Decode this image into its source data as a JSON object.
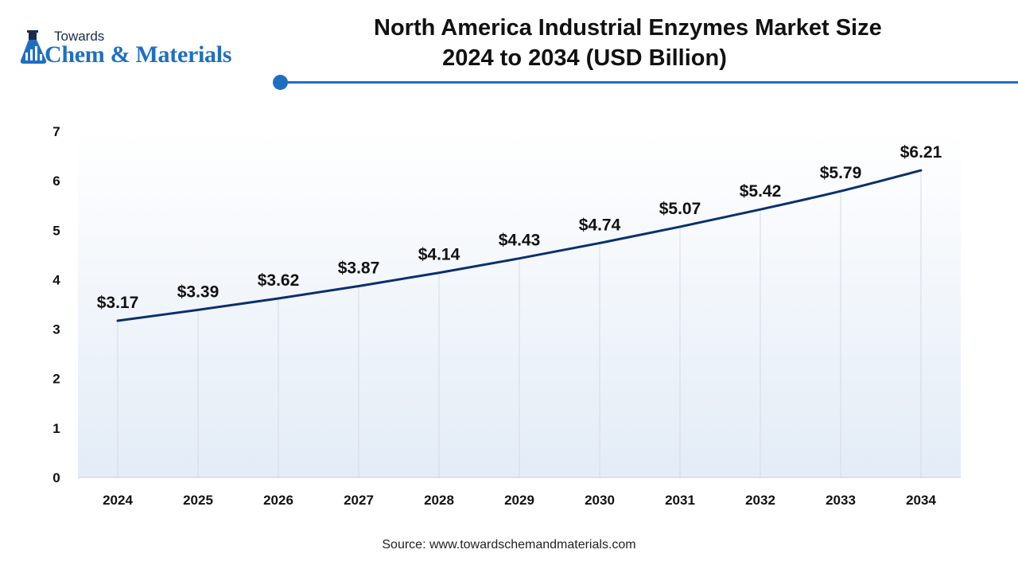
{
  "brand": {
    "line1": "Towards",
    "line2": "Chem & Materials",
    "color": "#1f6fc0"
  },
  "chart_data": {
    "type": "line",
    "title_line1": "North America Industrial Enzymes Market Size",
    "title_line2": "2024 to 2034 (USD Billion)",
    "categories": [
      "2024",
      "2025",
      "2026",
      "2027",
      "2028",
      "2029",
      "2030",
      "2031",
      "2032",
      "2033",
      "2034"
    ],
    "values": [
      3.17,
      3.39,
      3.62,
      3.87,
      4.14,
      4.43,
      4.74,
      5.07,
      5.42,
      5.79,
      6.21
    ],
    "data_labels": [
      "$3.17",
      "$3.39",
      "$3.62",
      "$3.87",
      "$4.14",
      "$4.43",
      "$4.74",
      "$5.07",
      "$5.42",
      "$5.79",
      "$6.21"
    ],
    "y_ticks": [
      "0",
      "1",
      "2",
      "3",
      "4",
      "5",
      "6",
      "7"
    ],
    "ylim": [
      0,
      7
    ],
    "line_color": "#0b2f6b",
    "grid": "vertical"
  },
  "source": "Source: www.towardschemandmaterials.com"
}
